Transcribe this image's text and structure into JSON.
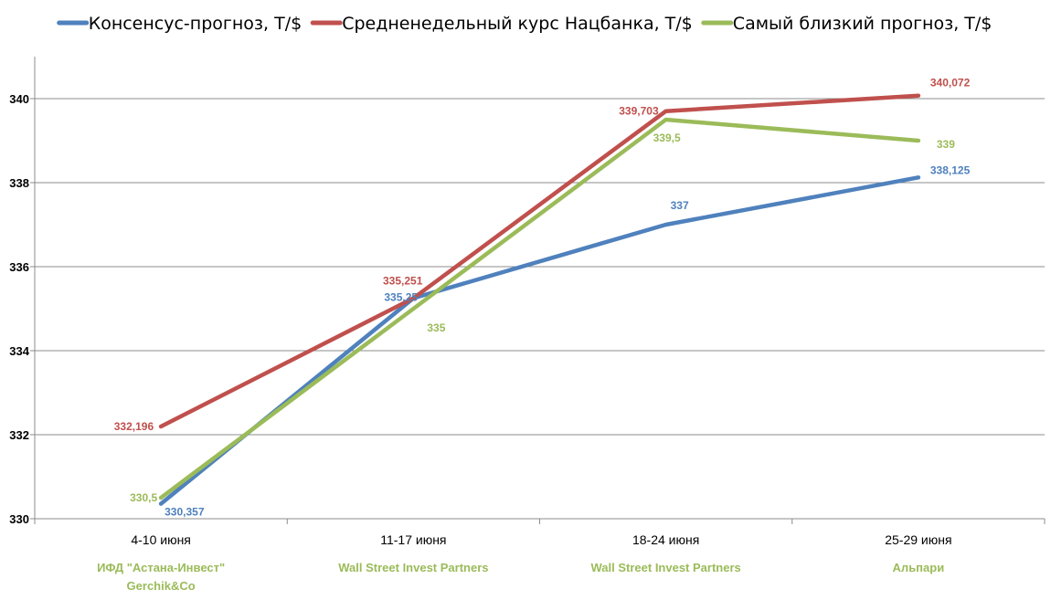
{
  "chart_data": {
    "type": "line",
    "categories": [
      "4-10 июня",
      "11-17 июня",
      "18-24 июня",
      "25-29 июня"
    ],
    "category_sublabels": [
      [
        "ИФД \"Астана-Инвест\"",
        "Gerchik&Co"
      ],
      [
        "Wall Street Invest Partners"
      ],
      [
        "Wall Street Invest Partners"
      ],
      [
        "Альпари"
      ]
    ],
    "sublabel_color": "#9bbb59",
    "series": [
      {
        "name": "Консенсус-прогноз, Т/$",
        "color": "#4f81bd",
        "values": [
          330.357,
          335.25,
          337,
          338.125
        ],
        "labels": [
          "330,357",
          "335,25",
          "337",
          "338,125"
        ]
      },
      {
        "name": "Средненедельный курс Нацбанка, Т/$",
        "color": "#c0504d",
        "values": [
          332.196,
          335.251,
          339.703,
          340.072
        ],
        "labels": [
          "332,196",
          "335,251",
          "339,703",
          "340,072"
        ]
      },
      {
        "name": "Самый близкий прогноз, Т/$",
        "color": "#9bbb59",
        "values": [
          330.5,
          335,
          339.5,
          339
        ],
        "labels": [
          "330,5",
          "335",
          "339,5",
          "339"
        ]
      }
    ],
    "ylim": [
      330,
      341
    ],
    "yticks": [
      330,
      332,
      334,
      336,
      338,
      340
    ],
    "grid": true,
    "legend_position": "top"
  }
}
